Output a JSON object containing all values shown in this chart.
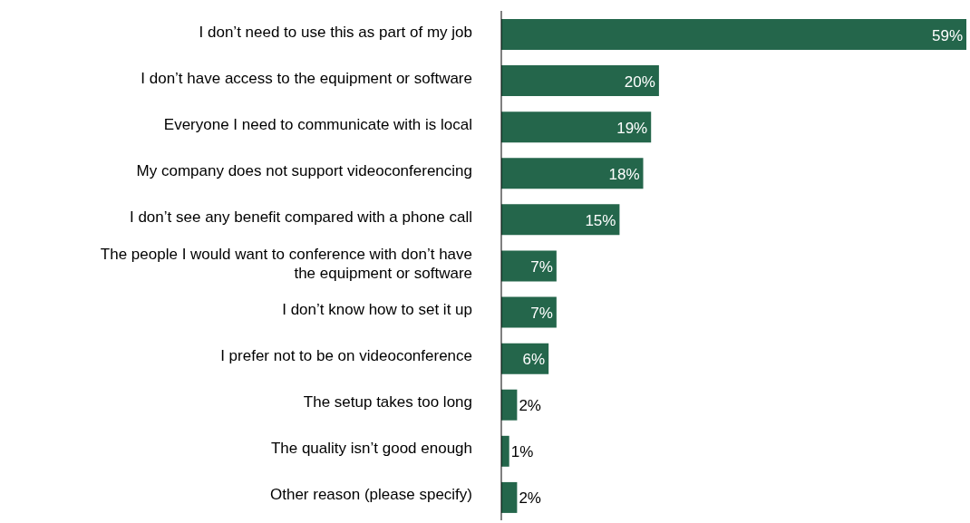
{
  "chart_data": {
    "type": "bar",
    "orientation": "horizontal",
    "categories": [
      "I don’t need to use this as part of my job",
      "I don’t have access to the equipment or software",
      "Everyone I need to communicate with is local",
      "My company does not support videoconferencing",
      "I don’t see any benefit compared with a phone call",
      "The people I would want to conference with don’t have the equipment or software",
      "I don’t know how to set it up",
      "I prefer not to be on videoconference",
      "The setup takes too long",
      "The quality isn’t good enough",
      "Other reason (please specify)"
    ],
    "values": [
      59,
      20,
      19,
      18,
      15,
      7,
      7,
      6,
      2,
      1,
      2
    ],
    "value_labels": [
      "59%",
      "20%",
      "19%",
      "18%",
      "15%",
      "7%",
      "7%",
      "6%",
      "2%",
      "1%",
      "2%"
    ],
    "color": "#24664b",
    "grid": false,
    "legend": false
  }
}
